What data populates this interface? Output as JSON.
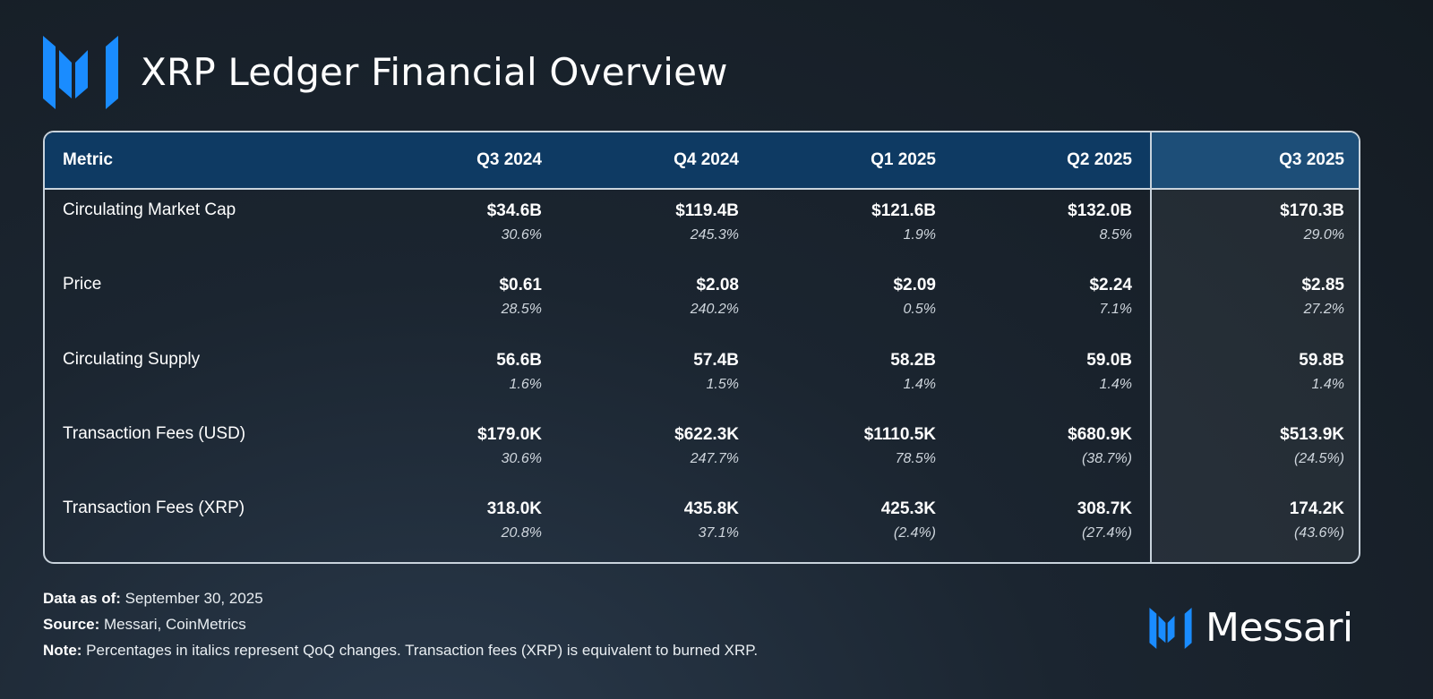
{
  "header": {
    "title": "XRP Ledger Financial Overview",
    "logo_icon": "messari-logo-icon"
  },
  "table": {
    "columns": [
      "Metric",
      "Q3 2024",
      "Q4 2024",
      "Q1 2025",
      "Q2 2025",
      "Q3 2025"
    ],
    "rows": [
      {
        "metric": "Circulating Market Cap",
        "cells": [
          {
            "value": "$34.6B",
            "change": "30.6%"
          },
          {
            "value": "$119.4B",
            "change": "245.3%"
          },
          {
            "value": "$121.6B",
            "change": "1.9%"
          },
          {
            "value": "$132.0B",
            "change": "8.5%"
          },
          {
            "value": "$170.3B",
            "change": "29.0%"
          }
        ]
      },
      {
        "metric": "Price",
        "cells": [
          {
            "value": "$0.61",
            "change": "28.5%"
          },
          {
            "value": "$2.08",
            "change": "240.2%"
          },
          {
            "value": "$2.09",
            "change": "0.5%"
          },
          {
            "value": "$2.24",
            "change": "7.1%"
          },
          {
            "value": "$2.85",
            "change": "27.2%"
          }
        ]
      },
      {
        "metric": "Circulating Supply",
        "cells": [
          {
            "value": "56.6B",
            "change": "1.6%"
          },
          {
            "value": "57.4B",
            "change": "1.5%"
          },
          {
            "value": "58.2B",
            "change": "1.4%"
          },
          {
            "value": "59.0B",
            "change": "1.4%"
          },
          {
            "value": "59.8B",
            "change": "1.4%"
          }
        ]
      },
      {
        "metric": "Transaction Fees (USD)",
        "cells": [
          {
            "value": "$179.0K",
            "change": "30.6%"
          },
          {
            "value": "$622.3K",
            "change": "247.7%"
          },
          {
            "value": "$1110.5K",
            "change": "78.5%"
          },
          {
            "value": "$680.9K",
            "change": "(38.7%)"
          },
          {
            "value": "$513.9K",
            "change": "(24.5%)"
          }
        ]
      },
      {
        "metric": "Transaction Fees (XRP)",
        "cells": [
          {
            "value": "318.0K",
            "change": "20.8%"
          },
          {
            "value": "435.8K",
            "change": "37.1%"
          },
          {
            "value": "425.3K",
            "change": "(2.4%)"
          },
          {
            "value": "308.7K",
            "change": "(27.4%)"
          },
          {
            "value": "174.2K",
            "change": "(43.6%)"
          }
        ]
      }
    ]
  },
  "footer": {
    "data_as_of_label": "Data as of:",
    "data_as_of_value": " September 30, 2025",
    "source_label": "Source:",
    "source_value": " Messari, CoinMetrics",
    "note_label": "Note:",
    "note_value": " Percentages in italics represent QoQ changes. Transaction fees (XRP) is equivalent to burned XRP."
  },
  "brand": {
    "name": "Messari"
  },
  "colors": {
    "accent_blue": "#1a8cff",
    "header_bg": "#0e3a63",
    "highlight_header_bg": "#1d4e78"
  }
}
